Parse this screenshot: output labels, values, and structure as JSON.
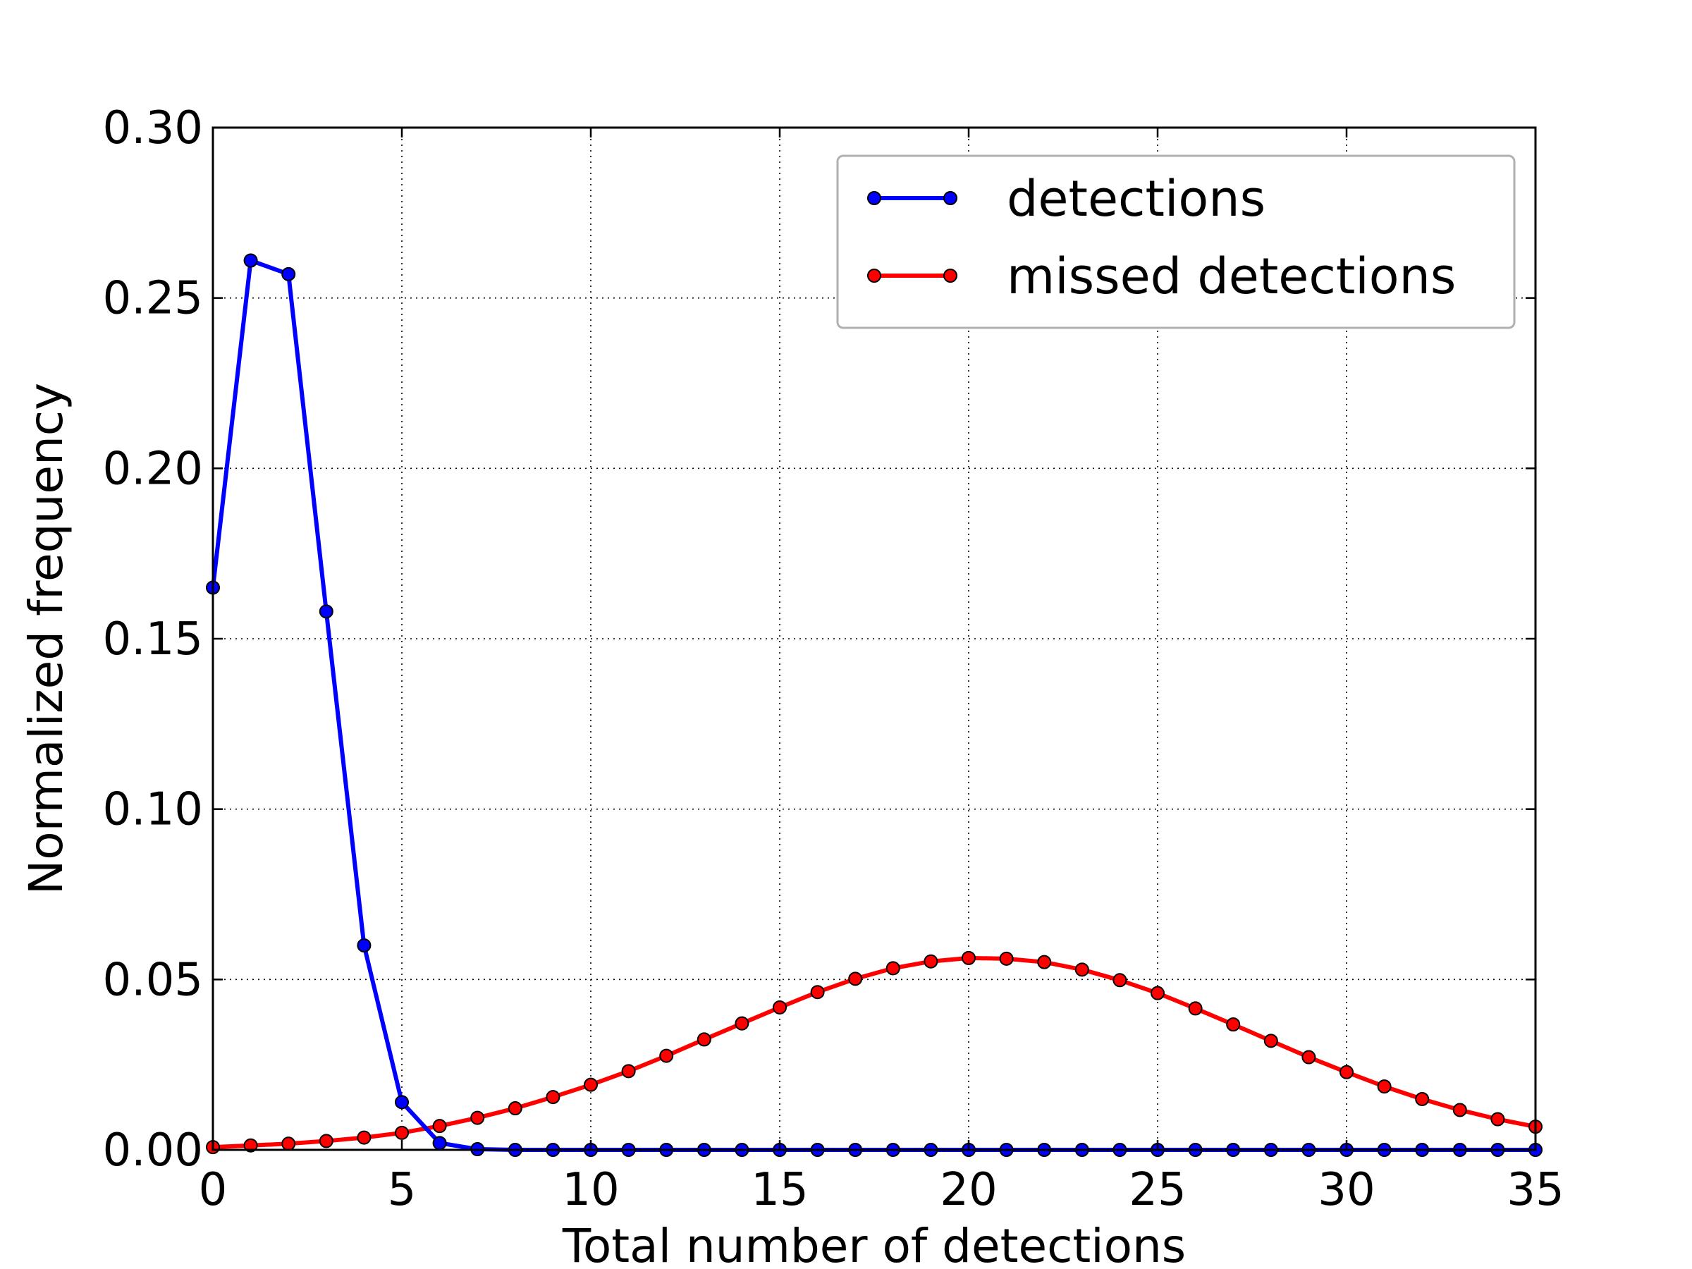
{
  "chart_data": {
    "type": "line",
    "title": "",
    "xlabel": "Total number of detections",
    "ylabel": "Normalized frequency",
    "xlim": [
      0,
      35
    ],
    "ylim": [
      0,
      0.3
    ],
    "x_ticks": [
      "0",
      "5",
      "10",
      "15",
      "20",
      "25",
      "30",
      "35"
    ],
    "y_ticks": [
      "0.00",
      "0.05",
      "0.10",
      "0.15",
      "0.20",
      "0.25",
      "0.30"
    ],
    "grid": true,
    "grid_style": "dotted",
    "legend_position": "top-right",
    "x": [
      0,
      1,
      2,
      3,
      4,
      5,
      6,
      7,
      8,
      9,
      10,
      11,
      12,
      13,
      14,
      15,
      16,
      17,
      18,
      19,
      20,
      21,
      22,
      23,
      24,
      25,
      26,
      27,
      28,
      29,
      30,
      31,
      32,
      33,
      34,
      35
    ],
    "series": [
      {
        "name": "detections",
        "color": "#0000ff",
        "marker": "circle",
        "values": [
          0.165,
          0.261,
          0.257,
          0.158,
          0.06,
          0.014,
          0.002,
          0.0002,
          0,
          0,
          0,
          0,
          0,
          0,
          0,
          0,
          0,
          0,
          0,
          0,
          0,
          0,
          0,
          0,
          0,
          0,
          0,
          0,
          0,
          0,
          0,
          0,
          0,
          0,
          0,
          0
        ]
      },
      {
        "name": "missed detections",
        "color": "#ff0000",
        "marker": "circle",
        "values": [
          0.0008,
          0.0013,
          0.0018,
          0.0026,
          0.0036,
          0.005,
          0.007,
          0.0094,
          0.0122,
          0.0155,
          0.0191,
          0.0231,
          0.0276,
          0.0324,
          0.0371,
          0.0418,
          0.0463,
          0.0502,
          0.0533,
          0.0553,
          0.0563,
          0.0561,
          0.0551,
          0.0529,
          0.0498,
          0.046,
          0.0415,
          0.0368,
          0.032,
          0.0272,
          0.0228,
          0.0186,
          0.0149,
          0.0117,
          0.009,
          0.0068
        ]
      }
    ]
  }
}
